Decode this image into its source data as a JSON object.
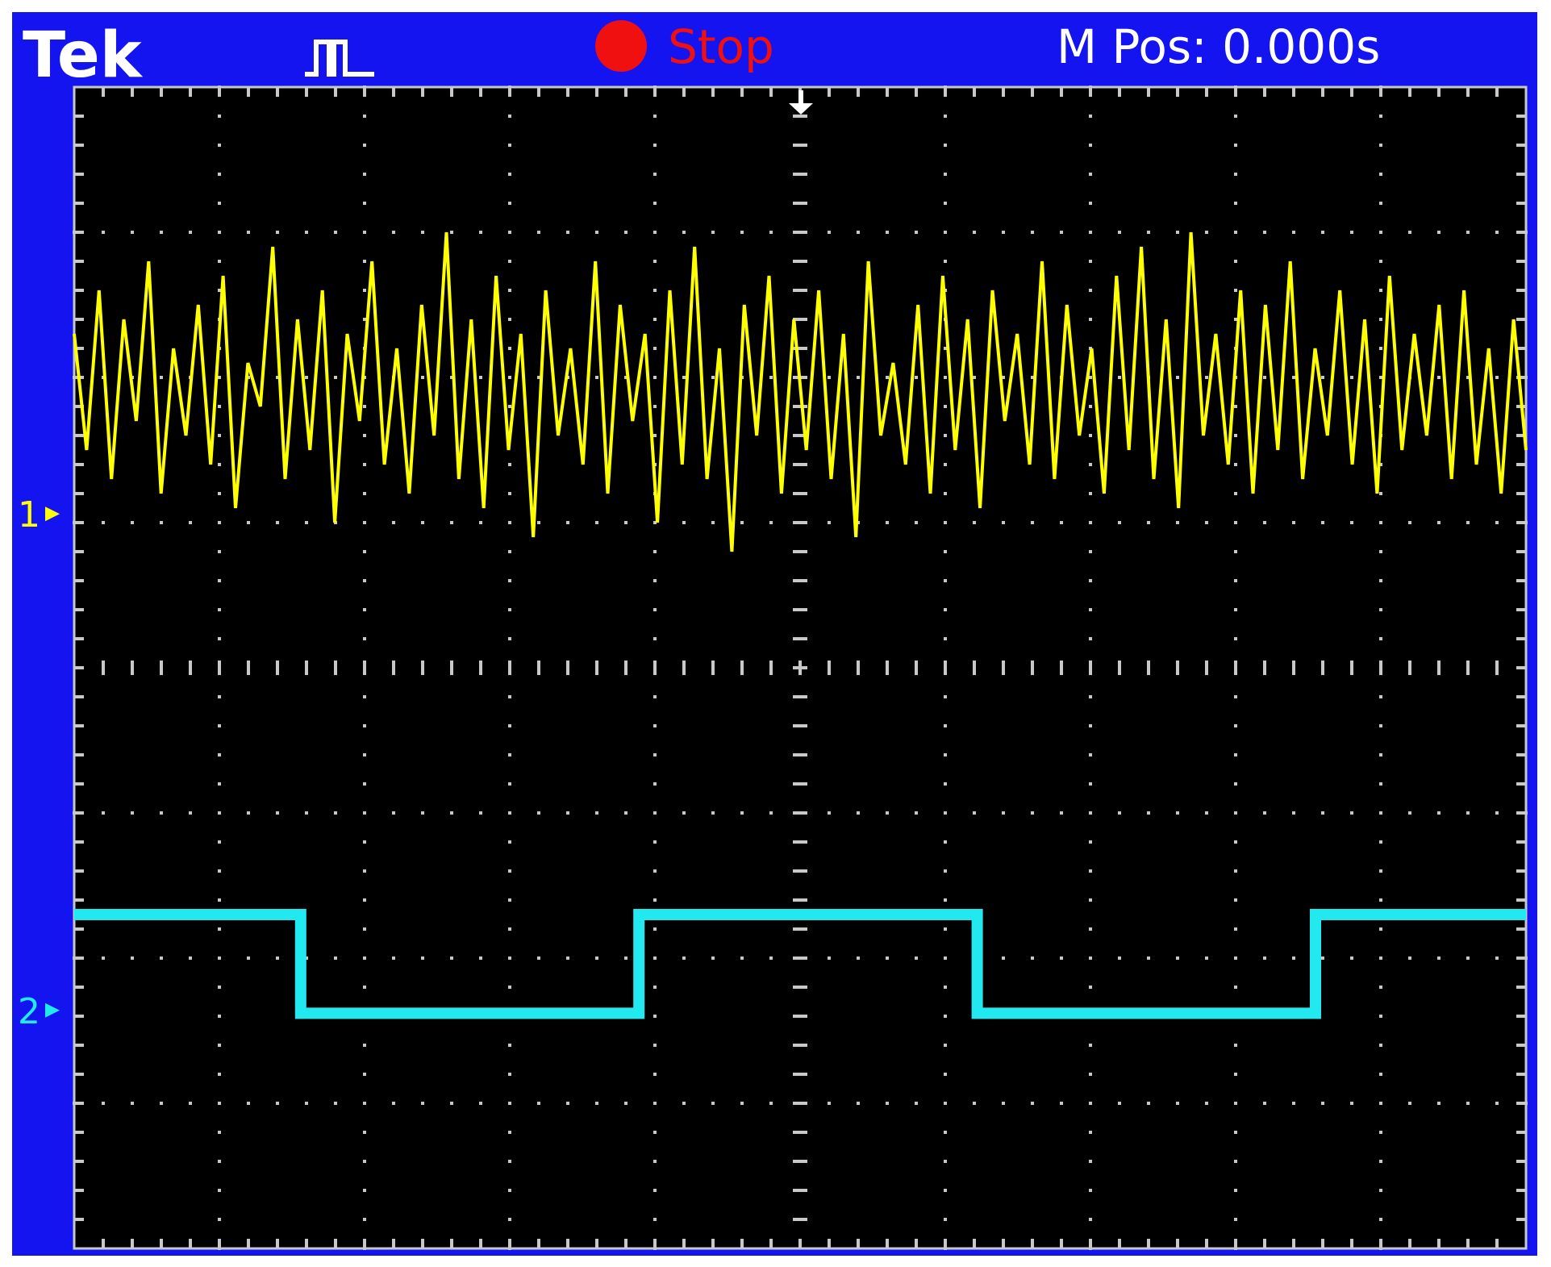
{
  "header": {
    "brand": "Tek",
    "status": "Stop",
    "position": "M Pos: 0.000s"
  },
  "graticule": {
    "xdivs": 10,
    "ydivs": 8
  },
  "channels": [
    {
      "label": "1",
      "color": "#ffff00",
      "ground": 1.06,
      "values": [
        2.3,
        1.5,
        2.6,
        1.3,
        2.4,
        1.7,
        2.8,
        1.2,
        2.2,
        1.6,
        2.5,
        1.4,
        2.7,
        1.1,
        2.1,
        1.8,
        2.9,
        1.3,
        2.4,
        1.5,
        2.6,
        1.0,
        2.3,
        1.7,
        2.8,
        1.4,
        2.2,
        1.2,
        2.5,
        1.6,
        3.0,
        1.3,
        2.4,
        1.1,
        2.7,
        1.5,
        2.3,
        0.9,
        2.6,
        1.6,
        2.2,
        1.4,
        2.8,
        1.2,
        2.5,
        1.7,
        2.3,
        1.0,
        2.6,
        1.4,
        2.9,
        1.3,
        2.2,
        0.8,
        2.5,
        1.6,
        2.7,
        1.2,
        2.4,
        1.5,
        2.6,
        1.3,
        2.3,
        0.9,
        2.8,
        1.6,
        2.1,
        1.4,
        2.5,
        1.2,
        2.7,
        1.5,
        2.4,
        1.1,
        2.6,
        1.7,
        2.3,
        1.4,
        2.8,
        1.3,
        2.5,
        1.6,
        2.2,
        1.2,
        2.7,
        1.5,
        2.9,
        1.3,
        2.4,
        1.1,
        3.0,
        1.6,
        2.3,
        1.4,
        2.6,
        1.2,
        2.5,
        1.5,
        2.8,
        1.3,
        2.2,
        1.6,
        2.6,
        1.4,
        2.4,
        1.2,
        2.7,
        1.5,
        2.3,
        1.6,
        2.5,
        1.3,
        2.6,
        1.4,
        2.2,
        1.2,
        2.4,
        1.5
      ]
    },
    {
      "label": "2",
      "color": "#22e8f0",
      "ground": -2.36,
      "x": [
        0,
        1.56,
        1.56,
        3.89,
        3.89,
        6.22,
        6.22,
        8.55,
        8.55,
        10
      ],
      "values": [
        -1.7,
        -1.7,
        -2.38,
        -2.38,
        -1.7,
        -1.7,
        -2.38,
        -2.38,
        -1.7,
        -1.7
      ]
    }
  ]
}
